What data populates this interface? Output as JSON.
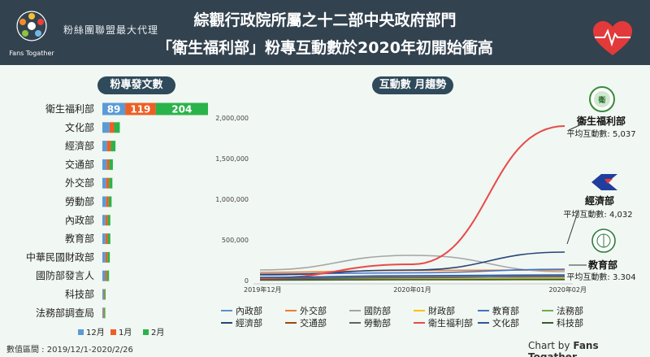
{
  "header": {
    "brand_cn": "粉絲團聯盟最大代理",
    "brand_en": "Fans Togather",
    "title_line1": "綜觀行政院所屬之十二部中央政府部門",
    "title_line2": "「衛生福利部」粉專互動數於2020年初開始衝高"
  },
  "left_panel": {
    "pill": "粉專發文數"
  },
  "right_panel": {
    "pill": "互動數 月趨勢"
  },
  "footer": {
    "date_range": "數值區間 : 2019/12/1-2020/2/26",
    "credit_prefix": "Chart by ",
    "credit_brand": "Fans Togather"
  },
  "colors": {
    "dec": "#5a9bd5",
    "jan": "#ed5f24",
    "feb": "#2bb34b",
    "header_bg": "#33424f"
  },
  "chart_data": [
    {
      "type": "bar",
      "stacked": true,
      "orientation": "horizontal",
      "categories": [
        "衛生福利部",
        "文化部",
        "經濟部",
        "交通部",
        "外交部",
        "勞動部",
        "內政部",
        "教育部",
        "中華民國財政部",
        "國防部發言人",
        "科技部",
        "法務部調查局"
      ],
      "series": [
        {
          "name": "12月",
          "color": "#5a9bd5",
          "values": [
            89,
            28,
            18,
            17,
            15,
            15,
            12,
            12,
            12,
            11,
            5,
            3
          ]
        },
        {
          "name": "1月",
          "color": "#ed5f24",
          "values": [
            119,
            18,
            15,
            10,
            11,
            10,
            9,
            9,
            8,
            7,
            3,
            2
          ]
        },
        {
          "name": "2月",
          "color": "#2bb34b",
          "values": [
            204,
            22,
            18,
            14,
            13,
            11,
            10,
            10,
            9,
            8,
            3,
            2
          ]
        }
      ],
      "data_labels": [
        "89",
        "119",
        "204"
      ],
      "legend_position": "bottom-left"
    },
    {
      "type": "line",
      "x": [
        "2019年12月",
        "2020年01月",
        "2020年02月"
      ],
      "ylim": [
        0,
        2000000
      ],
      "yticks": [
        "0",
        "500,000",
        "1,000,000",
        "1,500,000",
        "2,000,000"
      ],
      "grid": false,
      "legend_position": "bottom",
      "series": [
        {
          "name": "內政部",
          "color": "#5b8fd0",
          "values": [
            30000,
            55000,
            60000
          ]
        },
        {
          "name": "外交部",
          "color": "#ed7d31",
          "values": [
            100000,
            125000,
            130000
          ]
        },
        {
          "name": "國防部",
          "color": "#a5a5a5",
          "values": [
            130000,
            310000,
            110000
          ]
        },
        {
          "name": "財政部",
          "color": "#ffc000",
          "values": [
            10000,
            20000,
            25000
          ]
        },
        {
          "name": "教育部",
          "color": "#4472c4",
          "values": [
            80000,
            95000,
            140000
          ]
        },
        {
          "name": "法務部",
          "color": "#70ad47",
          "values": [
            10000,
            15000,
            20000
          ]
        },
        {
          "name": "經濟部",
          "color": "#264478",
          "values": [
            70000,
            130000,
            350000
          ]
        },
        {
          "name": "交通部",
          "color": "#9e480e",
          "values": [
            20000,
            40000,
            45000
          ]
        },
        {
          "name": "勞動部",
          "color": "#636363",
          "values": [
            20000,
            35000,
            50000
          ]
        },
        {
          "name": "衛生福利部",
          "color": "#e84a4a",
          "values": [
            30000,
            200000,
            1900000
          ]
        },
        {
          "name": "文化部",
          "color": "#2e5597",
          "values": [
            40000,
            60000,
            70000
          ]
        },
        {
          "name": "科技部",
          "color": "#3a5a2a",
          "values": [
            5000,
            10000,
            12000
          ]
        }
      ],
      "annotations": [
        {
          "org": "衛生福利部",
          "note": "平均互動數: 5,037"
        },
        {
          "org": "經濟部",
          "note": "平均互動數: 4,032"
        },
        {
          "org": "教育部",
          "note": "平均互動數: 3.304"
        }
      ]
    }
  ]
}
